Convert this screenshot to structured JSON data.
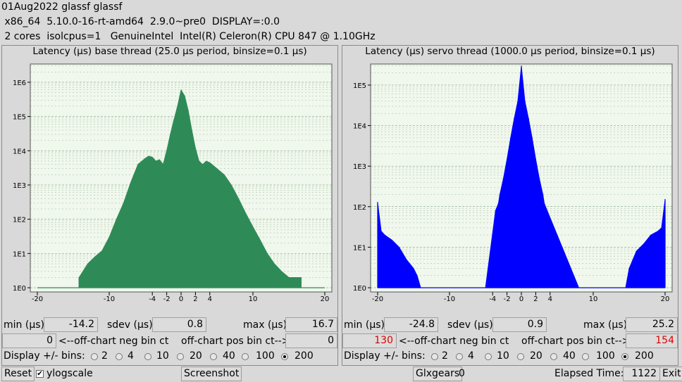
{
  "header": {
    "line1": "01Aug2022 glassf glassf",
    "line2": " x86_64  5.10.0-16-rt-amd64  2.9.0~pre0  DISPLAY=:0.0",
    "line3": " 2 cores  isolcpus=1   GenuineIntel  Intel(R) Celeron(R) CPU 847 @ 1.10GHz"
  },
  "colors": {
    "base_fill": "#2e8b57",
    "servo_fill": "#0000ff",
    "plot_bg": "#f0f7ec",
    "grid": "#5a8a5a",
    "alert_text": "#e00000"
  },
  "base": {
    "title": "Latency (µs) base thread (25.0 µs period, binsize=0.1 µs)",
    "min_label": "min (µs)",
    "min": "-14.2",
    "sdev_label": "sdev (µs)",
    "sdev": "0.8",
    "max_label": "max (µs)",
    "max": "16.7",
    "neg_ct": "0",
    "neg_label": "<--off-chart neg bin ct",
    "pos_label": "off-chart pos bin ct-->",
    "pos_ct": "0",
    "bins_label": "Display +/- bins:",
    "bins": [
      "2",
      "4",
      "10",
      "20",
      "40",
      "100",
      "200"
    ],
    "selected_bin": "200"
  },
  "servo": {
    "title": "Latency (µs) servo thread (1000.0 µs period, binsize=0.1 µs)",
    "min_label": "min (µs)",
    "min": "-24.8",
    "sdev_label": "sdev (µs)",
    "sdev": "0.9",
    "max_label": "max (µs)",
    "max": "25.2",
    "neg_ct": "130",
    "neg_label": "<--off-chart neg bin ct",
    "pos_label": "off-chart pos bin ct-->",
    "pos_ct": "154",
    "bins_label": "Display +/- bins:",
    "bins": [
      "2",
      "4",
      "10",
      "20",
      "40",
      "100",
      "200"
    ],
    "selected_bin": "200"
  },
  "footer": {
    "reset": "Reset",
    "ylog_label": "ylogscale",
    "ylog_checked": "✔",
    "screenshot": "Screenshot",
    "glxgears": "Glxgears",
    "glx_count": "0",
    "elapsed_label": "Elapsed Time:",
    "elapsed": "1122",
    "exit": "Exit"
  },
  "chart_data": [
    {
      "type": "area",
      "title": "Latency (µs) base thread (25.0 µs period, binsize=0.1 µs)",
      "log_y": true,
      "xlim": [
        -20,
        20
      ],
      "x_ticks": [
        "-20",
        "-10",
        "-4",
        "-2",
        "0",
        "2",
        "4",
        "10",
        "20"
      ],
      "y_ticks": [
        "1E0",
        "1E1",
        "1E2",
        "1E3",
        "1E4",
        "1E5",
        "1E6"
      ],
      "grid": true,
      "series": [
        {
          "x": [
            -14.2,
            -13,
            -12,
            -11,
            -10,
            -9,
            -8,
            -7,
            -6,
            -5,
            -4.5,
            -4,
            -3.5,
            -3,
            -2.5,
            -2,
            -1.5,
            -1,
            -0.5,
            0,
            0.5,
            1,
            1.5,
            2,
            2.5,
            3,
            3.5,
            4,
            5,
            6,
            7,
            8,
            9,
            10,
            11,
            12,
            13,
            14,
            15,
            16.7
          ],
          "y": [
            2,
            5,
            8,
            12,
            30,
            100,
            300,
            1200,
            4000,
            6000,
            7000,
            6500,
            5000,
            5500,
            4000,
            10000,
            30000,
            80000,
            200000,
            600000,
            400000,
            150000,
            40000,
            12000,
            5000,
            4000,
            5000,
            4500,
            3000,
            2000,
            1000,
            400,
            150,
            60,
            25,
            10,
            5,
            3,
            2,
            2
          ]
        }
      ]
    },
    {
      "type": "area",
      "title": "Latency (µs) servo thread (1000.0 µs period, binsize=0.1 µs)",
      "log_y": true,
      "xlim": [
        -20,
        20
      ],
      "x_ticks": [
        "-20",
        "-10",
        "-4",
        "-2",
        "0",
        "2",
        "4",
        "10",
        "20"
      ],
      "y_ticks": [
        "1E0",
        "1E1",
        "1E2",
        "1E3",
        "1E4",
        "1E5"
      ],
      "grid": true,
      "series": [
        {
          "x": [
            -20,
            -19.5,
            -19,
            -18,
            -17,
            -16,
            -15,
            -14.5,
            -14,
            -13,
            -5,
            -3.6,
            -3.2,
            -3,
            -2.5,
            -2,
            -1.5,
            -1,
            -0.5,
            0,
            0.5,
            1,
            1.5,
            2,
            2.5,
            3,
            3.2,
            3.6,
            8,
            14.5,
            15,
            16,
            17,
            18,
            19,
            19.5,
            20
          ],
          "y": [
            130,
            25,
            20,
            15,
            10,
            5,
            3,
            2,
            1,
            1,
            1,
            80,
            120,
            200,
            500,
            1500,
            5000,
            15000,
            40000,
            300000,
            40000,
            15000,
            5000,
            1500,
            500,
            200,
            120,
            80,
            1,
            1,
            3,
            8,
            12,
            20,
            25,
            30,
            154
          ]
        }
      ]
    }
  ]
}
